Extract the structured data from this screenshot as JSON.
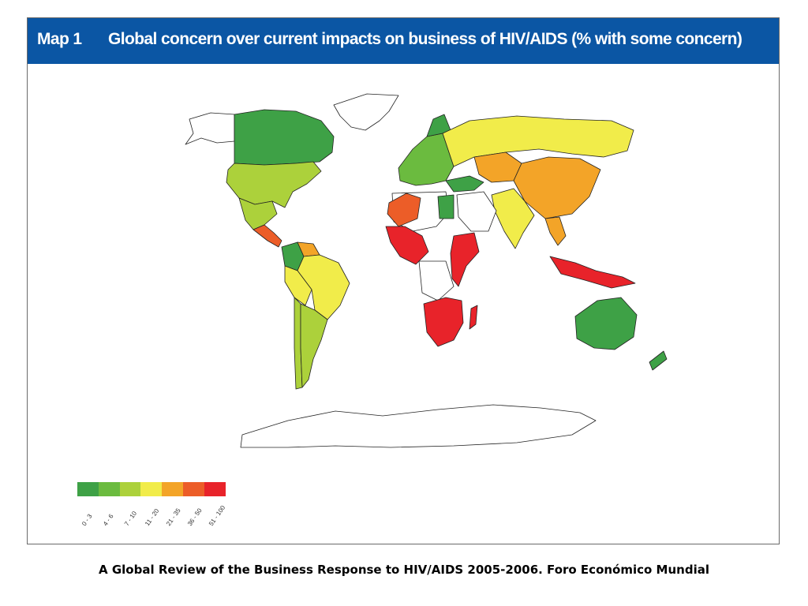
{
  "header": {
    "map_number": "Map 1",
    "title": "Global concern over current impacts on business of HIV/AIDS (% with some concern)"
  },
  "legend": {
    "items": [
      {
        "label": "0 - 3",
        "color": "#3ea146"
      },
      {
        "label": "4 - 6",
        "color": "#6bbb3f"
      },
      {
        "label": "7 - 10",
        "color": "#acd13b"
      },
      {
        "label": "11 - 20",
        "color": "#f1ec4a"
      },
      {
        "label": "21 - 35",
        "color": "#f3a428"
      },
      {
        "label": "36 - 50",
        "color": "#ec5d28"
      },
      {
        "label": "51 - 100",
        "color": "#e8232a"
      }
    ]
  },
  "regions": [
    {
      "name": "Canada",
      "category": "0 - 3"
    },
    {
      "name": "United States",
      "category": "7 - 10"
    },
    {
      "name": "Mexico",
      "category": "7 - 10"
    },
    {
      "name": "Central America",
      "category": "36 - 50"
    },
    {
      "name": "Colombia",
      "category": "0 - 3"
    },
    {
      "name": "Venezuela",
      "category": "21 - 35"
    },
    {
      "name": "Brazil",
      "category": "11 - 20"
    },
    {
      "name": "Peru",
      "category": "11 - 20"
    },
    {
      "name": "Argentina",
      "category": "7 - 10"
    },
    {
      "name": "Chile",
      "category": "7 - 10"
    },
    {
      "name": "Western Europe",
      "category": "4 - 6"
    },
    {
      "name": "Russia",
      "category": "11 - 20"
    },
    {
      "name": "Kazakhstan",
      "category": "21 - 35"
    },
    {
      "name": "China",
      "category": "21 - 35"
    },
    {
      "name": "India",
      "category": "11 - 20"
    },
    {
      "name": "Southeast Asia",
      "category": "21 - 35"
    },
    {
      "name": "Indonesia",
      "category": "51 - 100"
    },
    {
      "name": "Australia",
      "category": "0 - 3"
    },
    {
      "name": "New Zealand",
      "category": "0 - 3"
    },
    {
      "name": "Algeria",
      "category": "36 - 50"
    },
    {
      "name": "Egypt",
      "category": "0 - 3"
    },
    {
      "name": "West Africa",
      "category": "51 - 100"
    },
    {
      "name": "East Africa",
      "category": "51 - 100"
    },
    {
      "name": "Southern Africa",
      "category": "51 - 100"
    },
    {
      "name": "Madagascar",
      "category": "51 - 100"
    },
    {
      "name": "Turkey",
      "category": "0 - 3"
    }
  ],
  "footer": {
    "caption": "A Global Review of the Business Response to HIV/AIDS 2005-2006. Foro Económico Mundial"
  }
}
